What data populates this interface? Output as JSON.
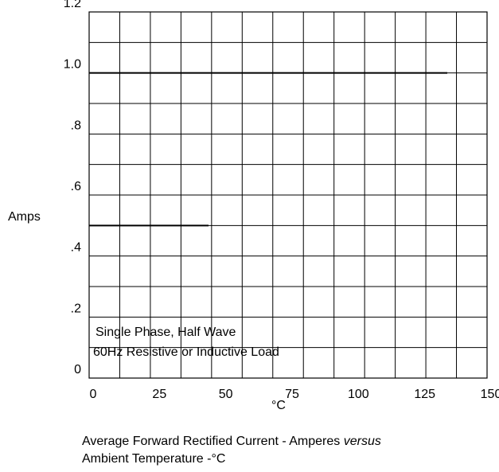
{
  "chart_data": {
    "type": "line",
    "ylabel": "Amps",
    "xlabel": "°C",
    "ylim": [
      0,
      1.2
    ],
    "xlim": [
      0,
      150
    ],
    "y_ticks": [
      {
        "value": 0,
        "label": "0"
      },
      {
        "value": 0.2,
        "label": ".2"
      },
      {
        "value": 0.4,
        "label": ".4"
      },
      {
        "value": 0.6,
        "label": ".6"
      },
      {
        "value": 0.8,
        "label": ".8"
      },
      {
        "value": 1.0,
        "label": "1.0"
      },
      {
        "value": 1.2,
        "label": "1.2"
      }
    ],
    "x_ticks": [
      {
        "value": 0,
        "label": "0"
      },
      {
        "value": 25,
        "label": "25"
      },
      {
        "value": 50,
        "label": "50"
      },
      {
        "value": 75,
        "label": "75"
      },
      {
        "value": 100,
        "label": "100"
      },
      {
        "value": 125,
        "label": "125"
      },
      {
        "value": 150,
        "label": "150"
      }
    ],
    "grid": true,
    "series": [
      {
        "x": [
          0,
          135
        ],
        "y": [
          1.0,
          1.0
        ]
      },
      {
        "x": [
          0,
          45
        ],
        "y": [
          0.5,
          0.5
        ]
      }
    ],
    "annotations": [
      "Single Phase, Half Wave",
      "60Hz Resistive or Inductive Load"
    ]
  },
  "caption": {
    "line1": "Average Forward Rectified Current  -  Amperes ",
    "line1_italic": "versus",
    "line2": "Ambient Temperature  -°C"
  }
}
